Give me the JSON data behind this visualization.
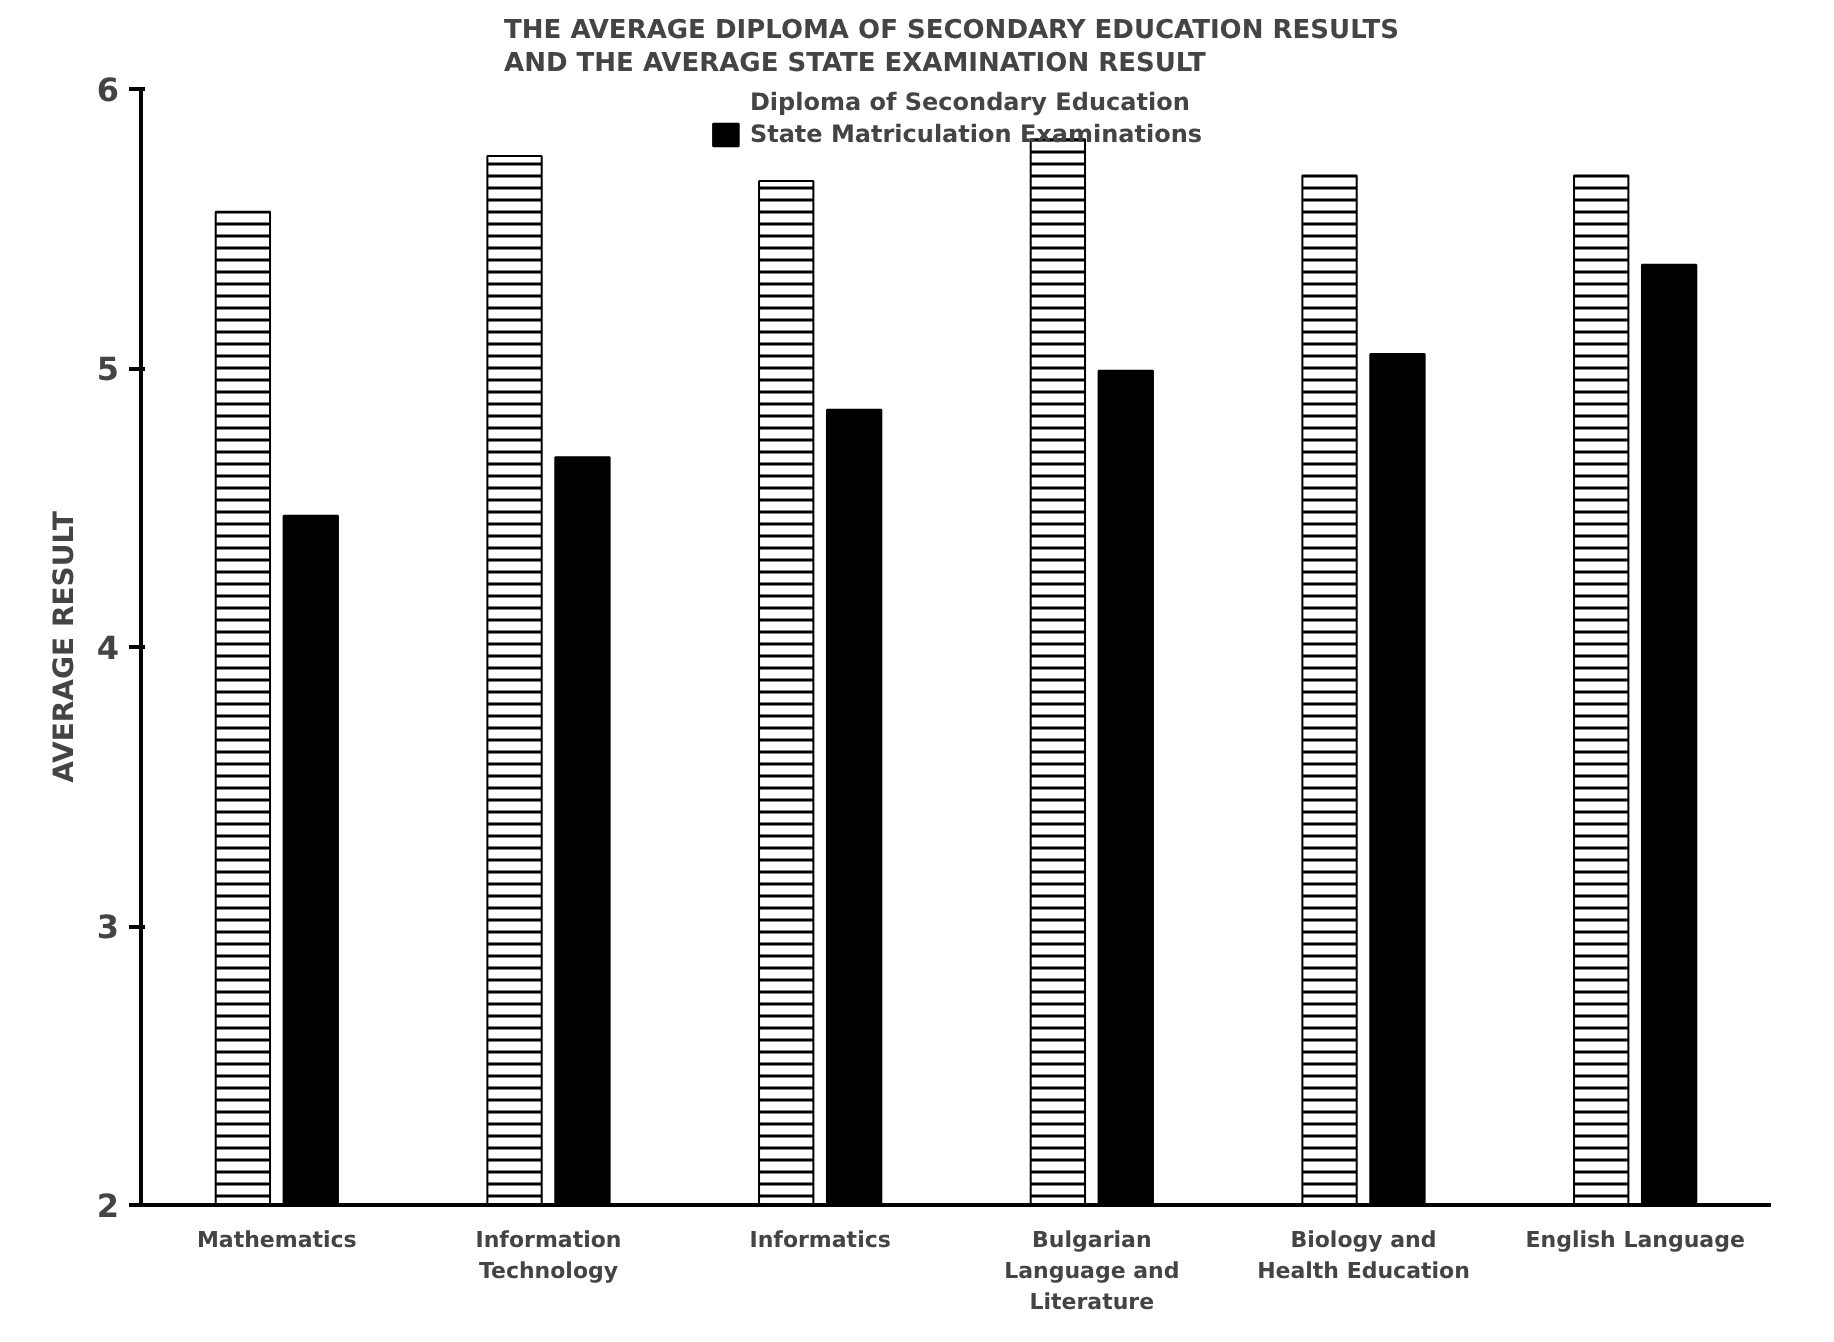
{
  "chart_data": {
    "type": "bar",
    "title": "THE AVERAGE DIPLOMA OF SECONDARY EDUCATION  RESULTS\nAND THE AVERAGE STATE EXAMINATION RESULT",
    "ylabel": "AVERAGE RESULT",
    "categories": [
      "Mathematics",
      "Information Technology",
      "Informatics",
      "Bulgarian Language and Literature",
      "Biology and Health Education",
      "English Language"
    ],
    "series": [
      {
        "name": "Diploma of Secondary Education",
        "color": "#ffffff",
        "values": [
          5.56,
          5.76,
          5.67,
          5.82,
          5.69,
          5.69
        ]
      },
      {
        "name": "State Matriculation Examinations",
        "color": "#000000",
        "values": [
          4.47,
          4.68,
          4.85,
          4.99,
          5.05,
          5.37
        ]
      }
    ],
    "ylim": [
      2,
      6
    ],
    "yticks": [
      2,
      3,
      4,
      5,
      6
    ],
    "grid": false,
    "legend": "top"
  }
}
